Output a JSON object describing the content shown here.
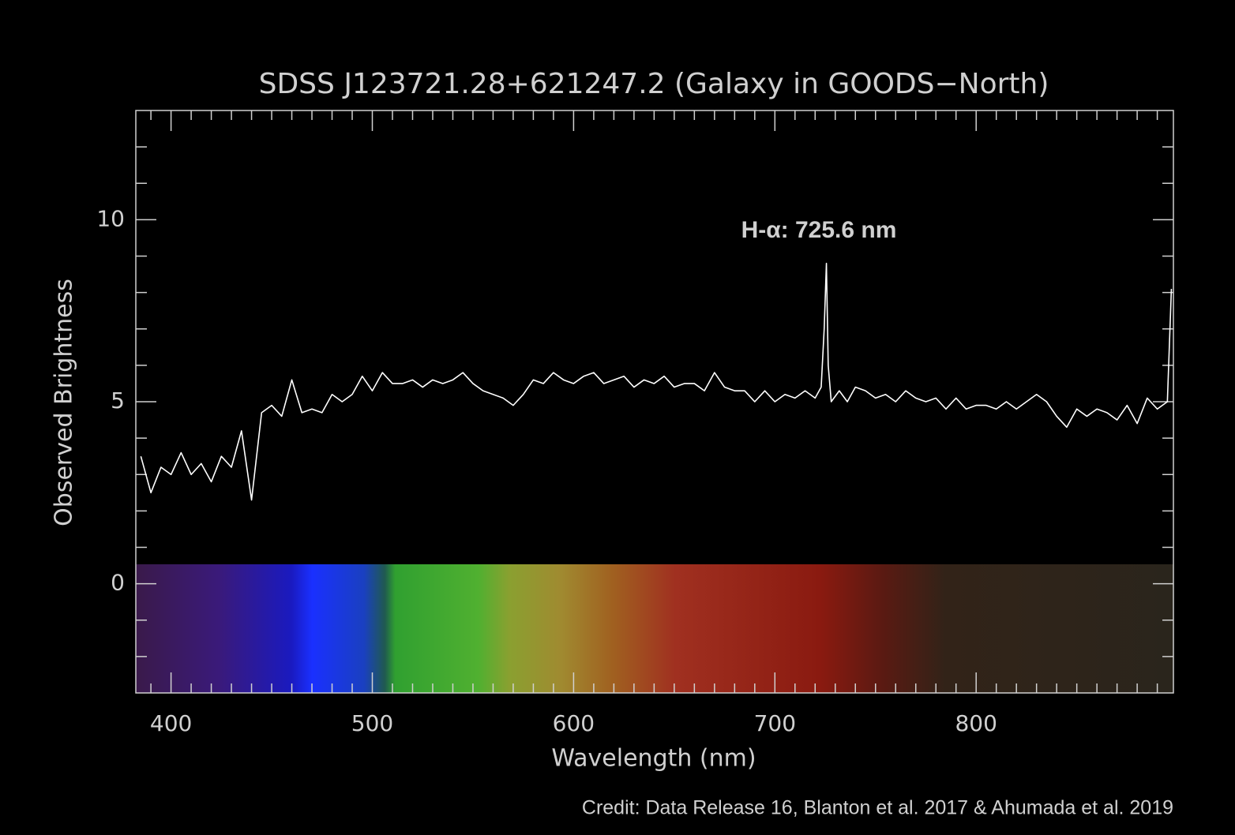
{
  "chart_data": {
    "type": "line",
    "title": "SDSS J123721.28+621247.2 (Galaxy in GOODS−North)",
    "x_label": "Wavelength (nm)",
    "y_label": "Observed Brightness",
    "annotation": "H-α: 725.6 nm",
    "credit": "Credit: Data Release 16, Blanton et al. 2017 & Ahumada et al. 2019",
    "color": "#ffffff",
    "xlim": [
      382.5,
      898
    ],
    "ylim": [
      -3,
      13
    ],
    "xticks": [
      400,
      500,
      600,
      700,
      800
    ],
    "yticks": [
      0,
      5,
      10
    ],
    "xminorticks": [
      390,
      410,
      420,
      430,
      440,
      450,
      460,
      470,
      480,
      490,
      510,
      520,
      530,
      540,
      550,
      560,
      570,
      580,
      590,
      610,
      620,
      630,
      640,
      650,
      660,
      670,
      680,
      690,
      710,
      720,
      730,
      740,
      750,
      760,
      770,
      780,
      790,
      810,
      820,
      830,
      840,
      850,
      860,
      870,
      880,
      890
    ],
    "yminorticks": [
      -2,
      -1,
      1,
      2,
      3,
      4,
      6,
      7,
      8,
      9,
      11,
      12
    ],
    "x": [
      385,
      390,
      395,
      400,
      405,
      410,
      415,
      420,
      425,
      430,
      435,
      440,
      445,
      450,
      455,
      460,
      465,
      470,
      475,
      480,
      485,
      490,
      495,
      500,
      505,
      510,
      515,
      520,
      525,
      530,
      535,
      540,
      545,
      550,
      555,
      560,
      565,
      570,
      575,
      580,
      585,
      590,
      595,
      600,
      605,
      610,
      615,
      620,
      625,
      630,
      635,
      640,
      645,
      650,
      655,
      660,
      665,
      670,
      675,
      680,
      685,
      690,
      695,
      700,
      705,
      710,
      715,
      720,
      723,
      724.5,
      725.6,
      726.5,
      728,
      732,
      736,
      740,
      745,
      750,
      755,
      760,
      765,
      770,
      775,
      780,
      785,
      790,
      795,
      800,
      805,
      810,
      815,
      820,
      825,
      830,
      835,
      840,
      845,
      850,
      855,
      860,
      865,
      870,
      875,
      880,
      885,
      890,
      895,
      897
    ],
    "values": [
      3.5,
      2.5,
      3.2,
      3.0,
      3.6,
      3.0,
      3.3,
      2.8,
      3.5,
      3.2,
      4.2,
      2.3,
      4.7,
      4.9,
      4.6,
      5.6,
      4.7,
      4.8,
      4.7,
      5.2,
      5.0,
      5.2,
      5.7,
      5.3,
      5.8,
      5.5,
      5.5,
      5.6,
      5.4,
      5.6,
      5.5,
      5.6,
      5.8,
      5.5,
      5.3,
      5.2,
      5.1,
      4.9,
      5.2,
      5.6,
      5.5,
      5.8,
      5.6,
      5.5,
      5.7,
      5.8,
      5.5,
      5.6,
      5.7,
      5.4,
      5.6,
      5.5,
      5.7,
      5.4,
      5.5,
      5.5,
      5.3,
      5.8,
      5.4,
      5.3,
      5.3,
      5.0,
      5.3,
      5.0,
      5.2,
      5.1,
      5.3,
      5.1,
      5.4,
      7.0,
      8.8,
      6.0,
      5.0,
      5.3,
      5.0,
      5.4,
      5.3,
      5.1,
      5.2,
      5.0,
      5.3,
      5.1,
      5.0,
      5.1,
      4.8,
      5.1,
      4.8,
      4.9,
      4.9,
      4.8,
      5.0,
      4.8,
      5.0,
      5.2,
      5.0,
      4.6,
      4.3,
      4.8,
      4.6,
      4.8,
      4.7,
      4.5,
      4.9,
      4.4,
      5.1,
      4.8,
      5.0,
      8.1
    ]
  }
}
